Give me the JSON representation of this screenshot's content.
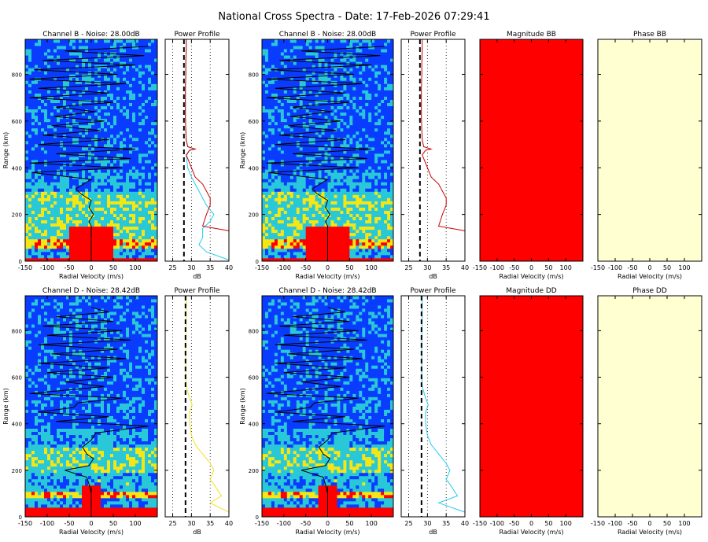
{
  "title": "National Cross Spectra - Date: 17-Feb-2026 07:29:41",
  "colors": {
    "low": "#0a3cff",
    "mid": "#28c8d8",
    "high": "#f5e614",
    "sat": "#ff0000",
    "magnitude_fill": "#ff0000",
    "phase_fill": "#ffffd2",
    "profile_cyan": "#22ccee",
    "profile_red": "#cc0000",
    "profile_yellow": "#f0e020",
    "doppler_line": "#000000"
  },
  "labels": {
    "range_axis": "Range (km)",
    "velocity_axis": "Radial Velocity (m/s)",
    "db_axis": "dB"
  },
  "chart_data": [
    {
      "type": "heatmap",
      "title": "Channel B - Noise: 28.00dB",
      "xlabel": "Radial Velocity (m/s)",
      "ylabel": "Range (km)",
      "xlim": [
        -150,
        150
      ],
      "ylim": [
        0,
        950
      ],
      "xticks": [
        -150,
        -100,
        -50,
        0,
        50,
        100
      ],
      "yticks": [
        0,
        200,
        400,
        600,
        800
      ],
      "seed": 7,
      "bands": [
        {
          "r": [
            0,
            15
          ],
          "level": 1.0
        },
        {
          "r": [
            15,
            50
          ],
          "level": 0.35
        },
        {
          "r": [
            50,
            90
          ],
          "level": 0.8
        },
        {
          "r": [
            90,
            150
          ],
          "level": 0.55
        },
        {
          "r": [
            150,
            300
          ],
          "level": 0.55
        },
        {
          "r": [
            300,
            380
          ],
          "level": 0.35
        },
        {
          "r": [
            380,
            950
          ],
          "level": 0.2
        }
      ],
      "core": {
        "r": [
          15,
          150
        ],
        "v": [
          -50,
          50
        ],
        "level": 1.0
      },
      "doppler_line": {
        "r": [
          0,
          60,
          100,
          150,
          170,
          200,
          230,
          260,
          290,
          310,
          350,
          380,
          400,
          420,
          440,
          460,
          480,
          500,
          520,
          540,
          560,
          580,
          600,
          620,
          640,
          660,
          680,
          700,
          720,
          740,
          760,
          780,
          800,
          820,
          840,
          860,
          880,
          900,
          920
        ],
        "v": [
          0,
          0,
          0,
          0,
          -5,
          5,
          -5,
          0,
          -25,
          -35,
          0,
          -135,
          70,
          -140,
          90,
          -80,
          100,
          -120,
          40,
          -110,
          20,
          -90,
          30,
          -85,
          10,
          -80,
          50,
          -140,
          40,
          -120,
          80,
          -140,
          60,
          -130,
          100,
          -110,
          120,
          -60,
          130
        ]
      },
      "vmark": {
        "r": [
          0,
          120
        ],
        "v": 0
      }
    },
    {
      "type": "line",
      "title": "Power Profile",
      "xlabel": "dB",
      "xlim": [
        23,
        40
      ],
      "ylim": [
        0,
        950
      ],
      "xticks": [
        25,
        30,
        35,
        40
      ],
      "noise_db": 28.0,
      "series": [
        {
          "color_key": "profile_cyan",
          "x": [
            40,
            34,
            32,
            33,
            33,
            35,
            36,
            34,
            33,
            32,
            31,
            30,
            29,
            28.6,
            29.5,
            31,
            29,
            28.6,
            28.5,
            28.4,
            28.4,
            28.4,
            28.5,
            28.5,
            28.6,
            28.6
          ],
          "y": [
            5,
            40,
            70,
            100,
            140,
            170,
            200,
            240,
            270,
            300,
            330,
            360,
            400,
            450,
            475,
            480,
            490,
            520,
            560,
            620,
            680,
            740,
            800,
            850,
            900,
            950
          ]
        },
        {
          "color_key": "profile_red",
          "x": [
            40,
            33,
            34,
            35,
            35,
            34,
            33,
            31,
            30,
            29,
            28.6,
            29.5,
            31,
            29,
            28.6,
            28.5,
            28.4,
            28.4,
            28.4,
            28.5,
            28.5,
            28.6,
            28.6
          ],
          "y": [
            130,
            150,
            200,
            240,
            270,
            300,
            330,
            360,
            400,
            440,
            455,
            475,
            480,
            490,
            520,
            560,
            620,
            680,
            740,
            800,
            850,
            900,
            950
          ]
        }
      ]
    },
    {
      "type": "heatmap",
      "title": "Channel B - Noise: 28.00dB",
      "xlabel": "Radial Velocity (m/s)",
      "ylabel": "Range (km)",
      "xlim": [
        -150,
        150
      ],
      "ylim": [
        0,
        950
      ],
      "xticks": [
        -150,
        -100,
        -50,
        0,
        50,
        100
      ],
      "yticks": [
        0,
        200,
        400,
        600,
        800
      ],
      "seed": 7,
      "bands": [
        {
          "r": [
            0,
            15
          ],
          "level": 1.0
        },
        {
          "r": [
            15,
            50
          ],
          "level": 0.35
        },
        {
          "r": [
            50,
            90
          ],
          "level": 0.8
        },
        {
          "r": [
            90,
            150
          ],
          "level": 0.55
        },
        {
          "r": [
            150,
            300
          ],
          "level": 0.55
        },
        {
          "r": [
            300,
            380
          ],
          "level": 0.35
        },
        {
          "r": [
            380,
            950
          ],
          "level": 0.2
        }
      ],
      "core": {
        "r": [
          15,
          150
        ],
        "v": [
          -50,
          50
        ],
        "level": 1.0
      },
      "doppler_line": {
        "r": [
          0,
          60,
          100,
          150,
          170,
          200,
          230,
          260,
          290,
          310,
          350,
          380,
          400,
          420,
          440,
          460,
          480,
          500,
          520,
          540,
          560,
          580,
          600,
          620,
          640,
          660,
          680,
          700,
          720,
          740,
          760,
          780,
          800,
          820,
          840,
          860,
          880,
          900,
          920
        ],
        "v": [
          0,
          0,
          0,
          0,
          -5,
          5,
          -5,
          0,
          -25,
          -35,
          0,
          -135,
          70,
          -140,
          90,
          -80,
          100,
          -120,
          40,
          -110,
          20,
          -90,
          30,
          -85,
          10,
          -80,
          50,
          -140,
          40,
          -120,
          80,
          -140,
          60,
          -130,
          100,
          -110,
          120,
          -60,
          130
        ]
      },
      "vmark": {
        "r": [
          0,
          120
        ],
        "v": 0
      }
    },
    {
      "type": "line",
      "title": "Power Profile",
      "xlabel": "dB",
      "xlim": [
        23,
        40
      ],
      "ylim": [
        0,
        950
      ],
      "xticks": [
        25,
        30,
        35,
        40
      ],
      "noise_db": 28.0,
      "series": [
        {
          "color_key": "profile_red",
          "x": [
            40,
            33,
            34,
            35,
            35,
            34,
            33,
            31,
            30,
            29,
            28.6,
            29.5,
            31,
            29,
            28.6,
            28.5,
            28.4,
            28.4,
            28.4,
            28.5,
            28.5,
            28.6,
            28.6
          ],
          "y": [
            130,
            150,
            200,
            240,
            270,
            300,
            330,
            360,
            400,
            440,
            455,
            475,
            480,
            490,
            520,
            560,
            620,
            680,
            740,
            800,
            850,
            900,
            950
          ]
        }
      ]
    },
    {
      "type": "heatmap",
      "title": "Magnitude BB",
      "xlabel": "Radial Velocity (m/s)",
      "xlim": [
        -150,
        150
      ],
      "ylim": [
        0,
        950
      ],
      "xticks": [
        -150,
        -100,
        -50,
        0,
        50,
        100
      ],
      "fill_key": "magnitude_fill"
    },
    {
      "type": "heatmap",
      "title": "Phase BB",
      "xlabel": "Radial Velocity (m/s)",
      "xlim": [
        -150,
        150
      ],
      "ylim": [
        0,
        950
      ],
      "xticks": [
        -150,
        -100,
        -50,
        0,
        50,
        100
      ],
      "fill_key": "phase_fill"
    },
    {
      "type": "heatmap",
      "title": "Channel D - Noise: 28.42dB",
      "xlabel": "Radial Velocity (m/s)",
      "ylabel": "Range (km)",
      "xlim": [
        -150,
        150
      ],
      "ylim": [
        0,
        950
      ],
      "xticks": [
        -150,
        -100,
        -50,
        0,
        50,
        100
      ],
      "yticks": [
        0,
        200,
        400,
        600,
        800
      ],
      "seed": 13,
      "bands": [
        {
          "r": [
            0,
            40
          ],
          "level": 1.0
        },
        {
          "r": [
            40,
            80
          ],
          "level": 0.35
        },
        {
          "r": [
            80,
            110
          ],
          "level": 0.8
        },
        {
          "r": [
            110,
            190
          ],
          "level": 0.4
        },
        {
          "r": [
            190,
            300
          ],
          "level": 0.55
        },
        {
          "r": [
            300,
            380
          ],
          "level": 0.35
        },
        {
          "r": [
            380,
            950
          ],
          "level": 0.2
        }
      ],
      "core": {
        "r": [
          40,
          140
        ],
        "v": [
          -20,
          20
        ],
        "level": 1.0
      },
      "doppler_line": {
        "r": [
          0,
          100,
          140,
          170,
          200,
          220,
          250,
          270,
          300,
          330,
          360,
          390,
          410,
          430,
          450,
          470,
          490,
          510,
          530,
          560,
          580,
          600,
          620,
          640,
          660,
          680,
          700,
          720,
          740,
          760,
          780,
          800,
          820,
          840,
          860,
          880,
          900
        ],
        "v": [
          0,
          0,
          -5,
          -10,
          -60,
          -5,
          5,
          -10,
          -20,
          0,
          10,
          130,
          -80,
          40,
          -120,
          -40,
          -30,
          70,
          -140,
          30,
          -60,
          50,
          -100,
          40,
          -120,
          80,
          -90,
          60,
          -120,
          90,
          -100,
          70,
          -110,
          50,
          -80,
          40,
          0
        ]
      },
      "vmark": {
        "r": [
          0,
          130
        ],
        "v": 0
      }
    },
    {
      "type": "line",
      "title": "Power Profile",
      "xlabel": "dB",
      "xlim": [
        23,
        40
      ],
      "ylim": [
        0,
        950
      ],
      "xticks": [
        25,
        30,
        35,
        40
      ],
      "noise_db": 28.42,
      "series": [
        {
          "color_key": "profile_yellow",
          "x": [
            40,
            35,
            38,
            36,
            35,
            36,
            35,
            33,
            31,
            30,
            29.5,
            29.5,
            30.2,
            29.5,
            28.6,
            28.5,
            28.5,
            28.5,
            28.6,
            28.6,
            28.6
          ],
          "y": [
            20,
            60,
            90,
            140,
            160,
            200,
            230,
            270,
            310,
            350,
            400,
            450,
            480,
            510,
            560,
            620,
            700,
            780,
            850,
            900,
            950
          ]
        }
      ]
    },
    {
      "type": "heatmap",
      "title": "Channel D - Noise: 28.42dB",
      "xlabel": "Radial Velocity (m/s)",
      "ylabel": "Range (km)",
      "xlim": [
        -150,
        150
      ],
      "ylim": [
        0,
        950
      ],
      "xticks": [
        -150,
        -100,
        -50,
        0,
        50,
        100
      ],
      "yticks": [
        0,
        200,
        400,
        600,
        800
      ],
      "seed": 13,
      "bands": [
        {
          "r": [
            0,
            40
          ],
          "level": 1.0
        },
        {
          "r": [
            40,
            80
          ],
          "level": 0.35
        },
        {
          "r": [
            80,
            110
          ],
          "level": 0.8
        },
        {
          "r": [
            110,
            190
          ],
          "level": 0.4
        },
        {
          "r": [
            190,
            300
          ],
          "level": 0.55
        },
        {
          "r": [
            300,
            380
          ],
          "level": 0.35
        },
        {
          "r": [
            380,
            950
          ],
          "level": 0.2
        }
      ],
      "core": {
        "r": [
          40,
          140
        ],
        "v": [
          -20,
          20
        ],
        "level": 1.0
      },
      "doppler_line": {
        "r": [
          0,
          100,
          140,
          170,
          200,
          220,
          250,
          270,
          300,
          330,
          360,
          390,
          410,
          430,
          450,
          470,
          490,
          510,
          530,
          560,
          580,
          600,
          620,
          640,
          660,
          680,
          700,
          720,
          740,
          760,
          780,
          800,
          820,
          840,
          860,
          880,
          900
        ],
        "v": [
          0,
          0,
          -5,
          -10,
          -60,
          -5,
          5,
          -10,
          -20,
          0,
          10,
          130,
          -80,
          40,
          -120,
          -40,
          -30,
          70,
          -140,
          30,
          -60,
          50,
          -100,
          40,
          -120,
          80,
          -90,
          60,
          -120,
          90,
          -100,
          70,
          -110,
          50,
          -80,
          40,
          0
        ]
      },
      "vmark": {
        "r": [
          0,
          130
        ],
        "v": 0
      }
    },
    {
      "type": "line",
      "title": "Power Profile",
      "xlabel": "dB",
      "xlim": [
        23,
        40
      ],
      "ylim": [
        0,
        950
      ],
      "xticks": [
        25,
        30,
        35,
        40
      ],
      "noise_db": 28.42,
      "series": [
        {
          "color_key": "profile_cyan",
          "x": [
            40,
            33,
            38,
            36,
            35,
            36,
            35,
            33,
            31,
            30,
            29.5,
            29.5,
            30.2,
            29.5,
            28.6,
            28.5,
            28.5,
            28.5,
            28.6,
            28.6,
            28.6
          ],
          "y": [
            20,
            60,
            90,
            140,
            160,
            200,
            230,
            270,
            310,
            350,
            400,
            450,
            480,
            510,
            560,
            620,
            700,
            780,
            850,
            900,
            950
          ]
        }
      ]
    },
    {
      "type": "heatmap",
      "title": "Magnitude DD",
      "xlabel": "Radial Velocity (m/s)",
      "xlim": [
        -150,
        150
      ],
      "ylim": [
        0,
        950
      ],
      "xticks": [
        -150,
        -100,
        -50,
        0,
        50,
        100
      ],
      "fill_key": "magnitude_fill"
    },
    {
      "type": "heatmap",
      "title": "Phase DD",
      "xlabel": "Radial Velocity (m/s)",
      "xlim": [
        -150,
        150
      ],
      "ylim": [
        0,
        950
      ],
      "xticks": [
        -150,
        -100,
        -50,
        0,
        50,
        100
      ],
      "fill_key": "phase_fill"
    }
  ]
}
